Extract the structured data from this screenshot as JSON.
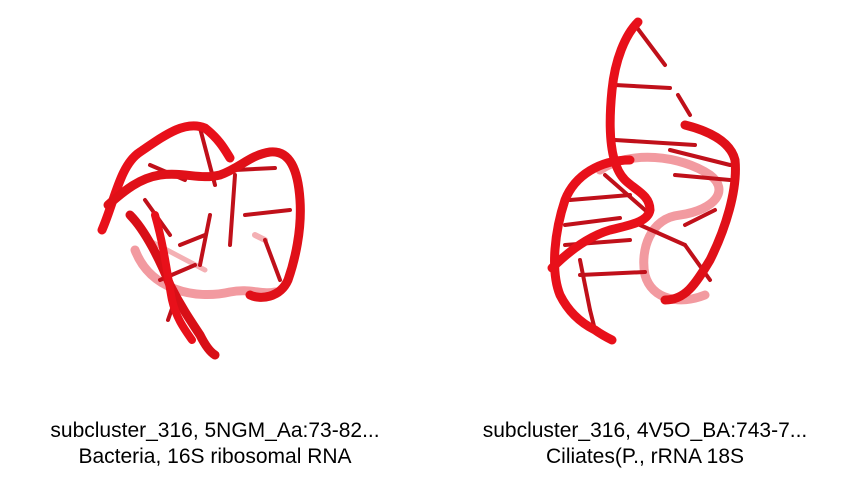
{
  "colors": {
    "backbone": "#e8101a",
    "backbone_dark": "#b40d14",
    "backbone_faded": "#f08a8f",
    "text": "#000000"
  },
  "structures": [
    {
      "caption_line1": "subcluster_316, 5NGM_Aa:73-82...",
      "caption_line2": "Bacteria, 16S ribosomal RNA"
    },
    {
      "caption_line1": "subcluster_316, 4V5O_BA:743-7...",
      "caption_line2": "Ciliates(P., rRNA 18S"
    }
  ]
}
